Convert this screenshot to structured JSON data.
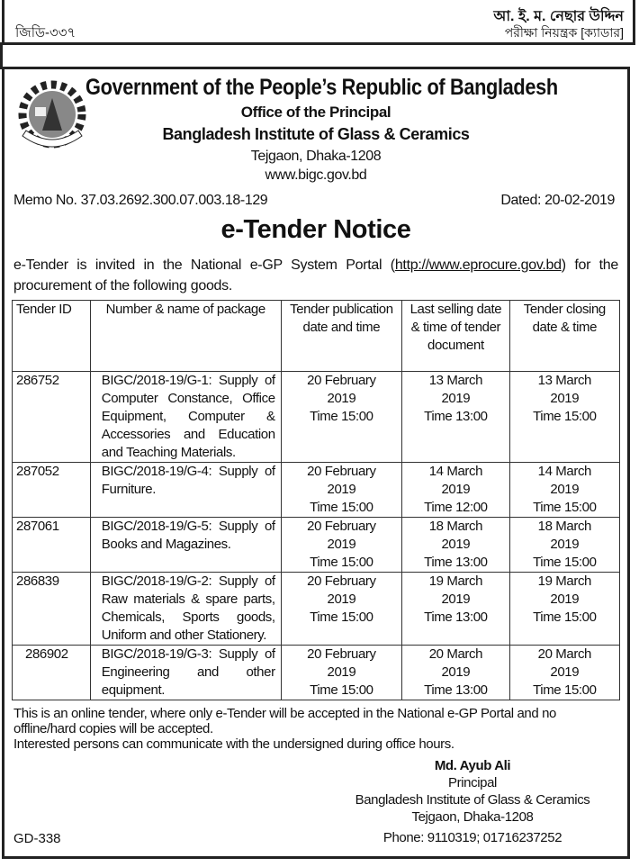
{
  "top_notice": {
    "code": "জিডি-৩৩৭",
    "name": "আ. ই. ম. নেছার উদ্দিন",
    "designation": "পরীক্ষা নিয়ন্ত্রক [ক্যাডার]"
  },
  "header": {
    "govt": "Government of the People’s Republic of Bangladesh",
    "office": "Office of the Principal",
    "institute": "Bangladesh Institute of Glass & Ceramics",
    "address": "Tejgaon, Dhaka-1208",
    "website": "www.bigc.gov.bd",
    "logo_text": "BANGLADESH INSTITUTE OF GLASS & CERAMICS"
  },
  "memo": "Memo No. 37.03.2692.300.07.003.18-129",
  "dated": "Dated: 20-02-2019",
  "title": "e-Tender Notice",
  "intro": {
    "before": "e-Tender is invited in the National e-GP System Portal (",
    "link": "http://www.eprocure.gov.bd",
    "after": ") for the procurement of the following goods."
  },
  "table": {
    "headers": [
      "Tender ID",
      "Number & name of package",
      "Tender publication date and time",
      "Last selling date & time of tender document",
      "Tender closing date & time"
    ],
    "rows": [
      {
        "id": "286752",
        "package": "BIGC/2018-19/G-1: Supply of Computer Constance, Office Equipment, Computer & Accessories and Education and Teaching Materials.",
        "pub": [
          "20 February",
          "2019",
          "Time 15:00"
        ],
        "sell": [
          "13 March",
          "2019",
          "Time 13:00"
        ],
        "close": [
          "13 March",
          "2019",
          "Time 15:00"
        ]
      },
      {
        "id": "287052",
        "package": "BIGC/2018-19/G-4: Supply of Furniture.",
        "pub": [
          "20 February",
          "2019",
          "Time 15:00"
        ],
        "sell": [
          "14 March",
          "2019",
          "Time 12:00"
        ],
        "close": [
          "14 March",
          "2019",
          "Time 15:00"
        ]
      },
      {
        "id": "287061",
        "package": "BIGC/2018-19/G-5: Supply of Books and Magazines.",
        "pub": [
          "20 February",
          "2019",
          "Time 15:00"
        ],
        "sell": [
          "18 March",
          "2019",
          "Time 13:00"
        ],
        "close": [
          "18 March",
          "2019",
          "Time 15:00"
        ]
      },
      {
        "id": "286839",
        "package": "BIGC/2018-19/G-2: Supply of Raw materials & spare parts, Chemicals, Sports goods, Uniform and other Stationery.",
        "pub": [
          "20 February",
          "2019",
          "Time 15:00"
        ],
        "sell": [
          "19 March",
          "2019",
          "Time 13:00"
        ],
        "close": [
          "19 March",
          "2019",
          "Time 15:00"
        ]
      },
      {
        "id": "286902",
        "package": "BIGC/2018-19/G-3: Supply of Engineering and other equipment.",
        "pub": [
          "20 February",
          "2019",
          "Time 15:00"
        ],
        "sell": [
          "20 March",
          "2019",
          "Time 13:00"
        ],
        "close": [
          "20 March",
          "2019",
          "Time 15:00"
        ]
      }
    ]
  },
  "footer": {
    "line1": "This is an online tender, where only e-Tender will be accepted in the National e-GP Portal and no offline/hard copies will be accepted.",
    "line2": "Interested persons can communicate with the undersigned during office hours."
  },
  "signature": {
    "name": "Md. Ayub Ali",
    "title": "Principal",
    "institute": "Bangladesh Institute of Glass & Ceramics",
    "address": "Tejgaon, Dhaka-1208",
    "phone": "Phone: 9110319; 01716237252"
  },
  "gd_code": "GD-338"
}
